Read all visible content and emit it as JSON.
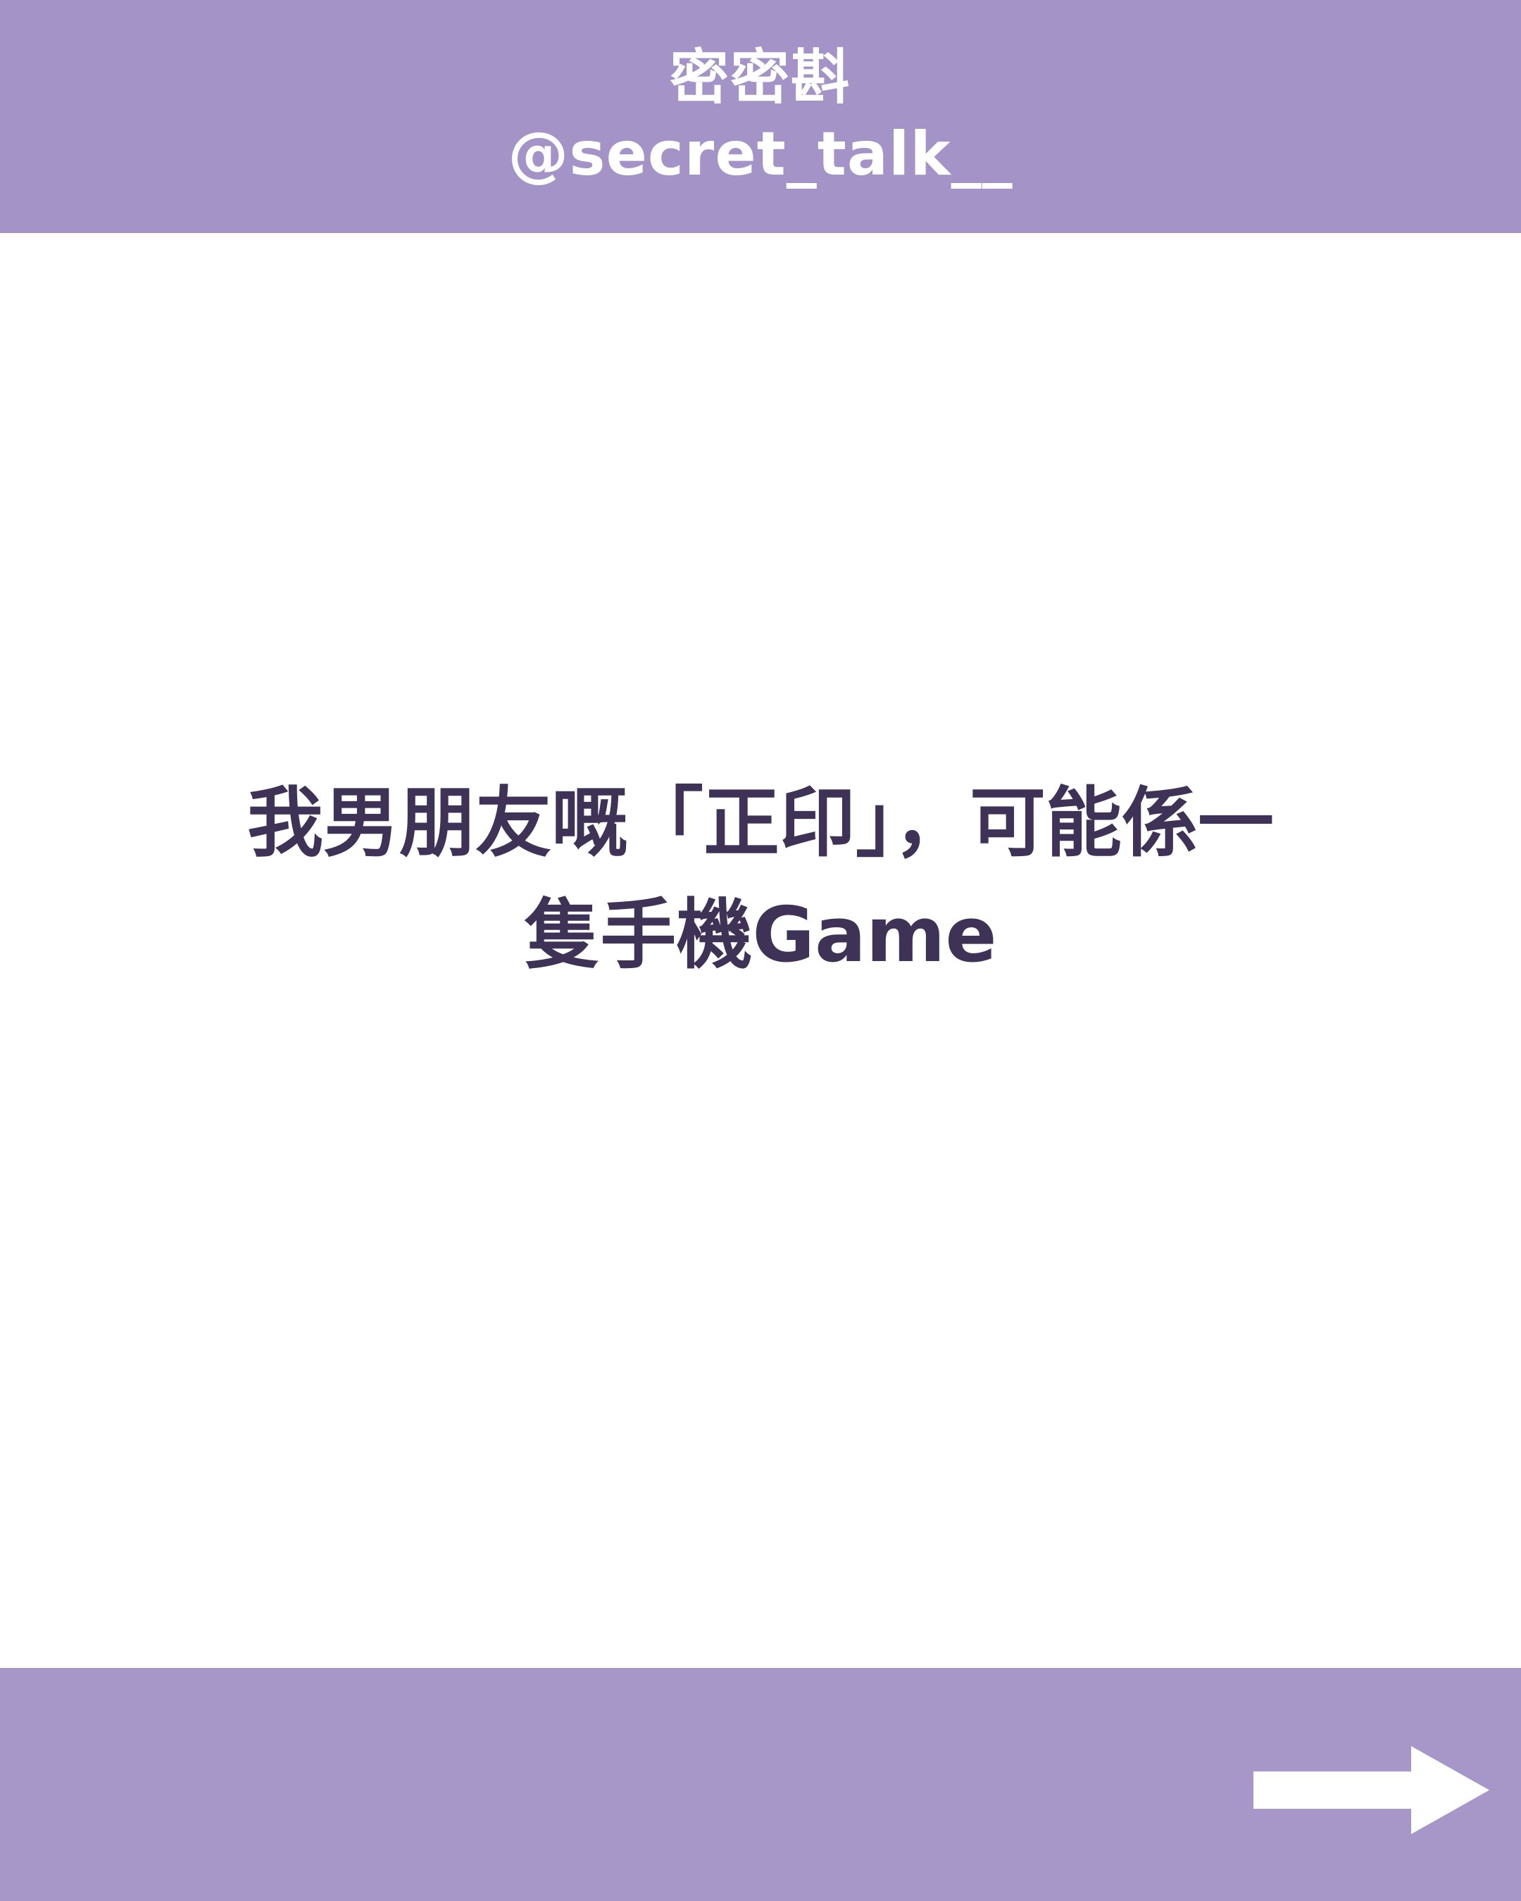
{
  "header": {
    "brand_name": "密密斟",
    "handle": "@secret_talk__",
    "background_color": "#a493c7",
    "text_color": "#ffffff"
  },
  "main": {
    "headline": "我男朋友嘅「正印」，可能係一隻手機Game",
    "text_color": "#3e3356",
    "background_color": "#ffffff"
  },
  "footer": {
    "background_color": "#a697c8",
    "next_icon": "arrow-right-icon"
  }
}
